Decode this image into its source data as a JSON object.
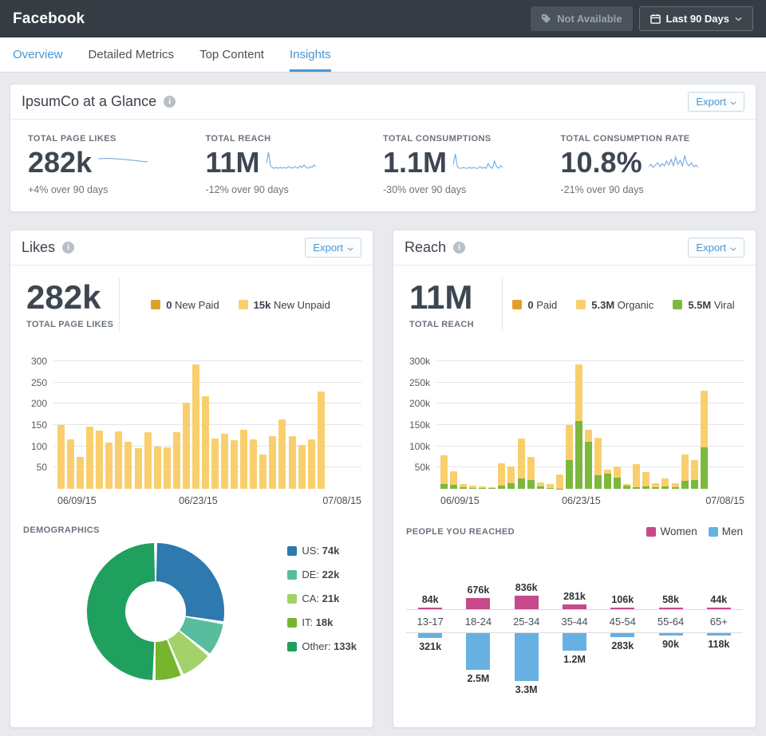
{
  "header": {
    "title": "Facebook",
    "not_available_label": "Not Available",
    "date_range_label": "Last 90 Days"
  },
  "tabs": [
    {
      "label": "Overview",
      "link": true,
      "active": false
    },
    {
      "label": "Detailed Metrics",
      "link": false,
      "active": false
    },
    {
      "label": "Top Content",
      "link": false,
      "active": false
    },
    {
      "label": "Insights",
      "link": true,
      "active": true
    }
  ],
  "glance": {
    "title": "IpsumCo at a Glance",
    "export_label": "Export",
    "metrics": [
      {
        "label": "TOTAL PAGE LIKES",
        "value": "282k",
        "delta": "+4% over 90 days",
        "sparkline": [
          14,
          14.2,
          14.4,
          14.1,
          13.7,
          13.2,
          12.6,
          12.0,
          11.3,
          10.6,
          10.0
        ]
      },
      {
        "label": "TOTAL REACH",
        "value": "11M",
        "delta": "-12% over 90 days",
        "sparkline": [
          8,
          22,
          5,
          3,
          2,
          3,
          2,
          3,
          2,
          3,
          2,
          4,
          3,
          2,
          4,
          3,
          2,
          5,
          3,
          6,
          3,
          2,
          4,
          3,
          6,
          4
        ]
      },
      {
        "label": "TOTAL CONSUMPTIONS",
        "value": "1.1M",
        "delta": "-30% over 90 days",
        "sparkline": [
          6,
          20,
          4,
          2,
          2,
          3,
          2,
          2,
          3,
          2,
          3,
          2,
          2,
          4,
          2,
          3,
          2,
          8,
          3,
          2,
          11,
          4,
          2,
          5,
          3
        ]
      },
      {
        "label": "TOTAL CONSUMPTION RATE",
        "value": "10.8%",
        "delta": "-21% over 90 days",
        "sparkline": [
          4,
          7,
          3,
          6,
          9,
          4,
          8,
          5,
          11,
          6,
          13,
          5,
          16,
          7,
          12,
          5,
          18,
          8,
          5,
          9,
          4,
          6,
          3
        ]
      }
    ],
    "sparkline_color": "#74a9db"
  },
  "likes_card": {
    "title": "Likes",
    "export_label": "Export",
    "stat_value": "282k",
    "stat_label": "TOTAL PAGE LIKES",
    "legend": [
      {
        "swatch": "#dfa02b",
        "value": "0",
        "label": "New Paid"
      },
      {
        "swatch": "#f9cf6e",
        "value": "15k",
        "label": "New Unpaid"
      }
    ],
    "chart": {
      "type": "bar",
      "bar_color": "#f9cf6e",
      "ylim": [
        0,
        300
      ],
      "y_ticks": [
        "300",
        "250",
        "200",
        "150",
        "100",
        "50"
      ],
      "x_ticks": [
        "06/09/15",
        "06/23/15",
        "07/08/15"
      ],
      "values": [
        150,
        116,
        75,
        146,
        137,
        108,
        135,
        110,
        96,
        134,
        100,
        98,
        133,
        202,
        292,
        217,
        118,
        130,
        115,
        138,
        116,
        80,
        123,
        164,
        124,
        103,
        116,
        229
      ]
    },
    "demographics": {
      "label": "DEMOGRAPHICS",
      "segments": [
        {
          "label": "US:",
          "value_label": "74k",
          "value": 74,
          "color": "#2e79ae"
        },
        {
          "label": "DE:",
          "value_label": "22k",
          "value": 22,
          "color": "#57bd9d"
        },
        {
          "label": "CA:",
          "value_label": "21k",
          "value": 21,
          "color": "#a2d269"
        },
        {
          "label": "IT:",
          "value_label": "18k",
          "value": 18,
          "color": "#76b52d"
        },
        {
          "label": "Other:",
          "value_label": "133k",
          "value": 133,
          "color": "#1fa05e"
        }
      ]
    }
  },
  "reach_card": {
    "title": "Reach",
    "export_label": "Export",
    "stat_value": "11M",
    "stat_label": "TOTAL REACH",
    "legend": [
      {
        "swatch": "#dfa02b",
        "value": "0",
        "label": "Paid"
      },
      {
        "swatch": "#f9cf6e",
        "value": "5.3M",
        "label": "Organic"
      },
      {
        "swatch": "#7cb83e",
        "value": "5.5M",
        "label": "Viral"
      }
    ],
    "chart": {
      "type": "stacked-bar",
      "organic_color": "#f9cf6e",
      "viral_color": "#7cb83e",
      "ylim": [
        0,
        300
      ],
      "y_ticks": [
        "300k",
        "250k",
        "200k",
        "150k",
        "100k",
        "50k"
      ],
      "x_ticks": [
        "06/09/15",
        "06/23/15",
        "07/08/15"
      ],
      "viral": [
        12,
        10,
        4,
        2,
        2,
        2,
        8,
        13,
        25,
        20,
        5,
        2,
        1,
        67,
        160,
        110,
        32,
        36,
        26,
        7,
        4,
        5,
        4,
        6,
        4,
        18,
        21,
        97
      ],
      "organic": [
        66,
        32,
        8,
        6,
        3,
        2,
        52,
        39,
        93,
        55,
        10,
        10,
        32,
        83,
        132,
        28,
        88,
        10,
        26,
        5,
        55,
        35,
        9,
        18,
        9,
        63,
        46,
        133
      ]
    },
    "people": {
      "label": "PEOPLE YOU REACHED",
      "women_label": "Women",
      "men_label": "Men",
      "women_color": "#c7498b",
      "men_color": "#67b1e2",
      "groups": [
        {
          "age": "13-17",
          "women_label": "84k",
          "women": 84,
          "men_label": "321k",
          "men": 321
        },
        {
          "age": "18-24",
          "women_label": "676k",
          "women": 676,
          "men_label": "2.5M",
          "men": 2500
        },
        {
          "age": "25-34",
          "women_label": "836k",
          "women": 836,
          "men_label": "3.3M",
          "men": 3300
        },
        {
          "age": "35-44",
          "women_label": "281k",
          "women": 281,
          "men_label": "1.2M",
          "men": 1200
        },
        {
          "age": "45-54",
          "women_label": "106k",
          "women": 106,
          "men_label": "283k",
          "men": 283
        },
        {
          "age": "55-64",
          "women_label": "58k",
          "women": 58,
          "men_label": "90k",
          "men": 90
        },
        {
          "age": "65+",
          "women_label": "44k",
          "women": 44,
          "men_label": "118k",
          "men": 118
        }
      ]
    }
  }
}
